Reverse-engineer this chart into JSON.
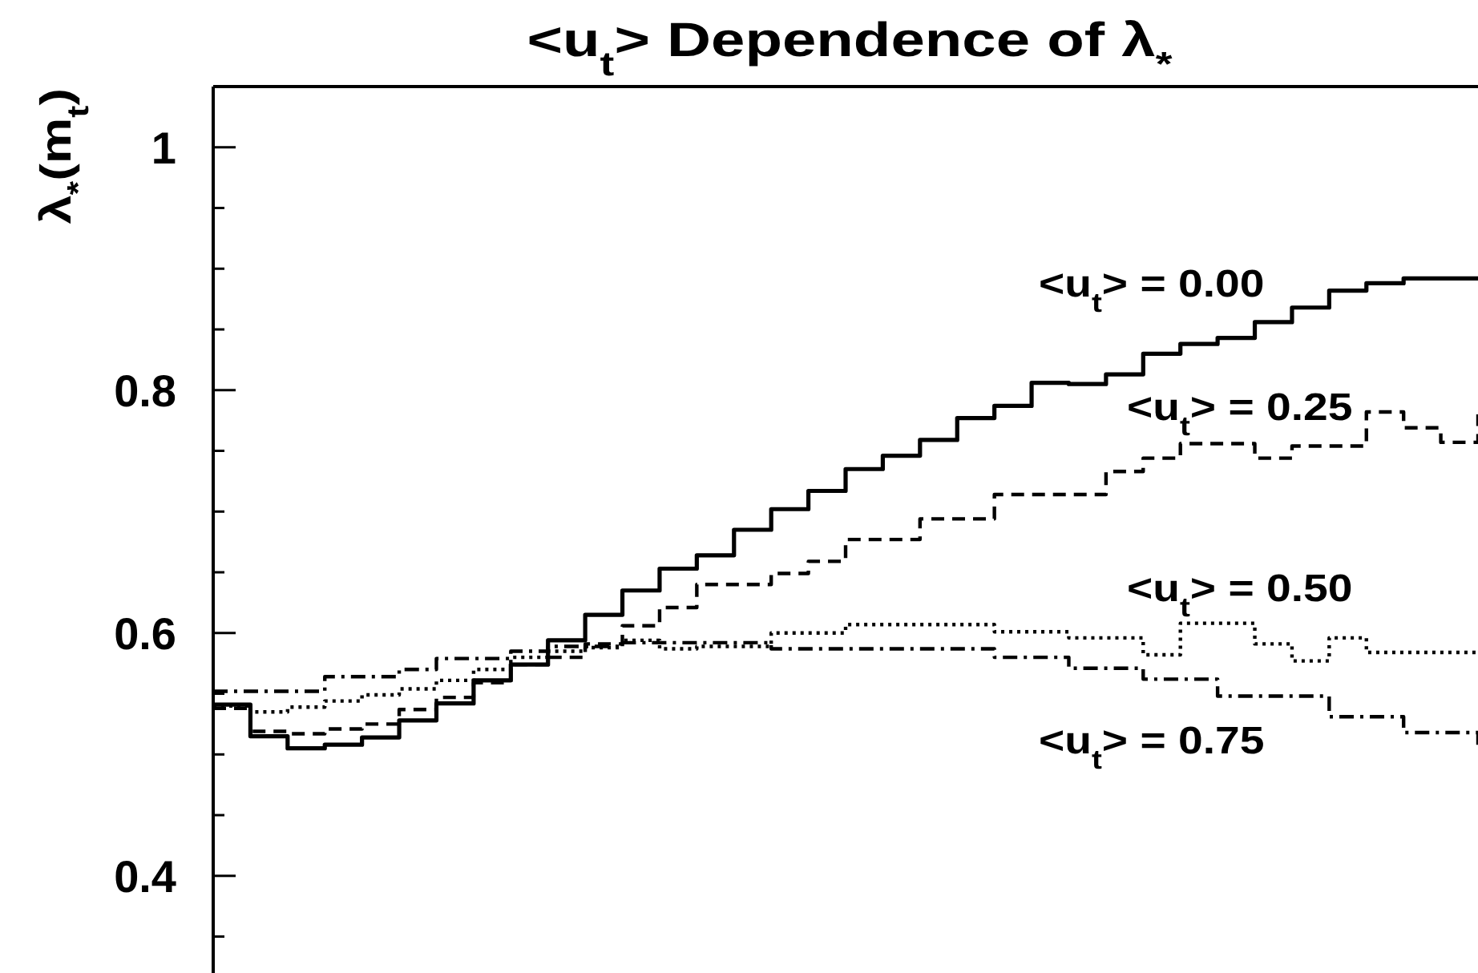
{
  "chart_data": {
    "type": "step",
    "title": "<u$_{t}$> Dependence of λ$_{*}$",
    "ylabel": "λ$_{*}$(m$_{t}$)",
    "categories": [
      null,
      null,
      null,
      null,
      null,
      null,
      null,
      null,
      null,
      null,
      null,
      null,
      null,
      null,
      null,
      null,
      null,
      null,
      null,
      null,
      null,
      null,
      null,
      null,
      null,
      null,
      null,
      null,
      null,
      null,
      null,
      null,
      null,
      null,
      null
    ],
    "series": [
      {
        "name": "<u$_{t}$> = 0.00",
        "color": "#000000",
        "line_style": "solid",
        "values": [
          0.541,
          0.515,
          0.505,
          0.508,
          0.514,
          0.528,
          0.542,
          0.561,
          0.574,
          0.594,
          0.615,
          0.635,
          0.653,
          0.664,
          0.685,
          0.702,
          0.717,
          0.735,
          0.746,
          0.759,
          0.777,
          0.787,
          0.806,
          0.805,
          0.813,
          0.83,
          0.838,
          0.843,
          0.856,
          0.868,
          0.882,
          0.888,
          0.892,
          0.892,
          0.892
        ]
      },
      {
        "name": "<u$_{t}$> = 0.25",
        "color": "#000000",
        "line_style": "dashed",
        "values": [
          0.538,
          0.519,
          0.517,
          0.521,
          0.525,
          0.537,
          0.547,
          0.559,
          0.574,
          0.58,
          0.591,
          0.606,
          0.621,
          0.64,
          0.64,
          0.649,
          0.659,
          0.677,
          0.677,
          0.694,
          0.694,
          0.714,
          0.714,
          0.714,
          0.733,
          0.744,
          0.756,
          0.756,
          0.744,
          0.754,
          0.754,
          0.782,
          0.769,
          0.757,
          0.78
        ]
      },
      {
        "name": "<u$_{t}$> = 0.50",
        "color": "#000000",
        "line_style": "dotted",
        "values": [
          0.54,
          0.535,
          0.539,
          0.544,
          0.549,
          0.554,
          0.561,
          0.57,
          0.58,
          0.585,
          0.588,
          0.594,
          0.587,
          0.589,
          0.589,
          0.6,
          0.6,
          0.607,
          0.607,
          0.607,
          0.607,
          0.601,
          0.601,
          0.596,
          0.596,
          0.582,
          0.608,
          0.608,
          0.591,
          0.577,
          0.596,
          0.584,
          0.584,
          0.584,
          0.584
        ]
      },
      {
        "name": "<u$_{t}$> = 0.75",
        "color": "#000000",
        "line_style": "dashdot",
        "values": [
          0.552,
          0.552,
          0.552,
          0.564,
          0.564,
          0.57,
          0.579,
          0.579,
          0.585,
          0.589,
          0.589,
          0.592,
          0.592,
          0.592,
          0.592,
          0.587,
          0.587,
          0.587,
          0.587,
          0.587,
          0.587,
          0.58,
          0.58,
          0.571,
          0.571,
          0.562,
          0.562,
          0.548,
          0.548,
          0.548,
          0.531,
          0.531,
          0.518,
          0.518,
          0.503
        ]
      }
    ],
    "ylim": [
      0.32,
      1.05
    ],
    "yticks": [
      {
        "value": 0.35,
        "label": null
      },
      0.4,
      {
        "value": 0.45,
        "label": null
      },
      {
        "value": 0.5,
        "label": null
      },
      {
        "value": 0.55,
        "label": null
      },
      0.6,
      {
        "value": 0.65,
        "label": null
      },
      {
        "value": 0.7,
        "label": null
      },
      {
        "value": 0.75,
        "label": null
      },
      0.8,
      {
        "value": 0.85,
        "label": null
      },
      {
        "value": 0.9,
        "label": null
      },
      {
        "value": 0.95,
        "label": null
      },
      1
    ],
    "tick_labels": "y",
    "legend": false,
    "marker": "none"
  }
}
